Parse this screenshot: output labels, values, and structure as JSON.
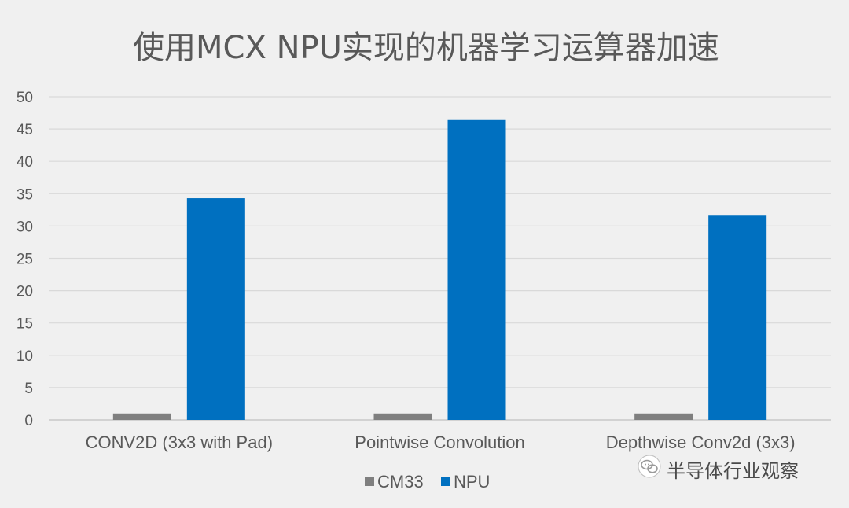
{
  "chart_data": {
    "type": "bar",
    "title": "使用MCX NPU实现的机器学习运算器加速",
    "categories": [
      "CONV2D (3x3 with Pad)",
      "Pointwise Convolution",
      "Depthwise Conv2d (3x3)"
    ],
    "series": [
      {
        "name": "CM33",
        "values": [
          1,
          1,
          1
        ],
        "color": "#7f7f7f"
      },
      {
        "name": "NPU",
        "values": [
          34.3,
          46.5,
          31.6
        ],
        "color": "#0070c0"
      }
    ],
    "yticks": [
      "0",
      "5",
      "10",
      "15",
      "20",
      "25",
      "30",
      "35",
      "40",
      "45",
      "50"
    ],
    "ylim": [
      0,
      50
    ],
    "grid": true,
    "legend": "bottom-center",
    "xlabel": "",
    "ylabel": ""
  },
  "watermark": {
    "text": "半导体行业观察",
    "icon": "wechat-icon"
  }
}
